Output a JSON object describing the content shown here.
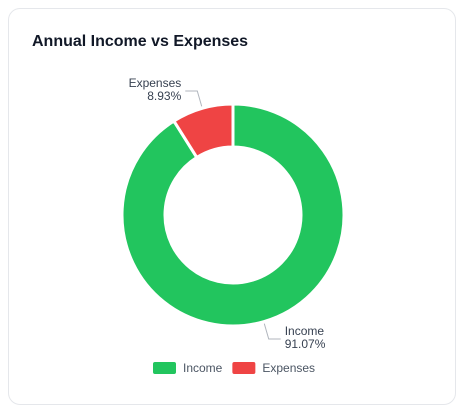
{
  "chart_data": {
    "type": "donut",
    "title": "Annual Income vs Expenses",
    "categories": [
      "Income",
      "Expenses"
    ],
    "values": [
      91.07,
      8.93
    ],
    "value_labels": [
      "91.07%",
      "8.93%"
    ],
    "colors": [
      "#22c55e",
      "#ef4444"
    ],
    "legend": "bottom"
  }
}
